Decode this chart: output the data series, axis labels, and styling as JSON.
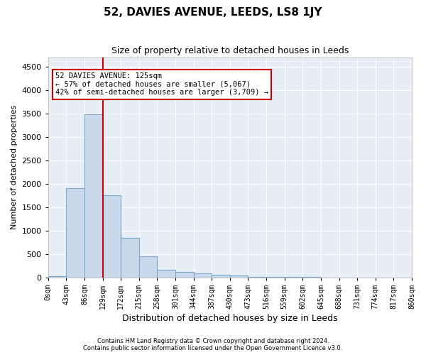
{
  "title": "52, DAVIES AVENUE, LEEDS, LS8 1JY",
  "subtitle": "Size of property relative to detached houses in Leeds",
  "xlabel": "Distribution of detached houses by size in Leeds",
  "ylabel": "Number of detached properties",
  "bar_color": "#c9d9ec",
  "bar_edge_color": "#7aa8cc",
  "bg_color": "#e8eef5",
  "annotation_box_color": "#cc0000",
  "vline_color": "#cc0000",
  "annotation_text": "52 DAVIES AVENUE: 125sqm\n← 57% of detached houses are smaller (5,067)\n42% of semi-detached houses are larger (3,709) →",
  "tick_labels": [
    "0sqm",
    "43sqm",
    "86sqm",
    "129sqm",
    "172sqm",
    "215sqm",
    "258sqm",
    "301sqm",
    "344sqm",
    "387sqm",
    "430sqm",
    "473sqm",
    "516sqm",
    "559sqm",
    "602sqm",
    "645sqm",
    "688sqm",
    "731sqm",
    "774sqm",
    "817sqm",
    "860sqm"
  ],
  "values": [
    30,
    1900,
    3480,
    1760,
    850,
    450,
    165,
    115,
    90,
    50,
    40,
    10,
    10,
    5,
    5,
    2,
    2,
    2,
    2,
    2
  ],
  "ylim": [
    0,
    4700
  ],
  "yticks": [
    0,
    500,
    1000,
    1500,
    2000,
    2500,
    3000,
    3500,
    4000,
    4500
  ],
  "vline_position": 3,
  "footer_line1": "Contains HM Land Registry data © Crown copyright and database right 2024.",
  "footer_line2": "Contains public sector information licensed under the Open Government Licence v3.0."
}
